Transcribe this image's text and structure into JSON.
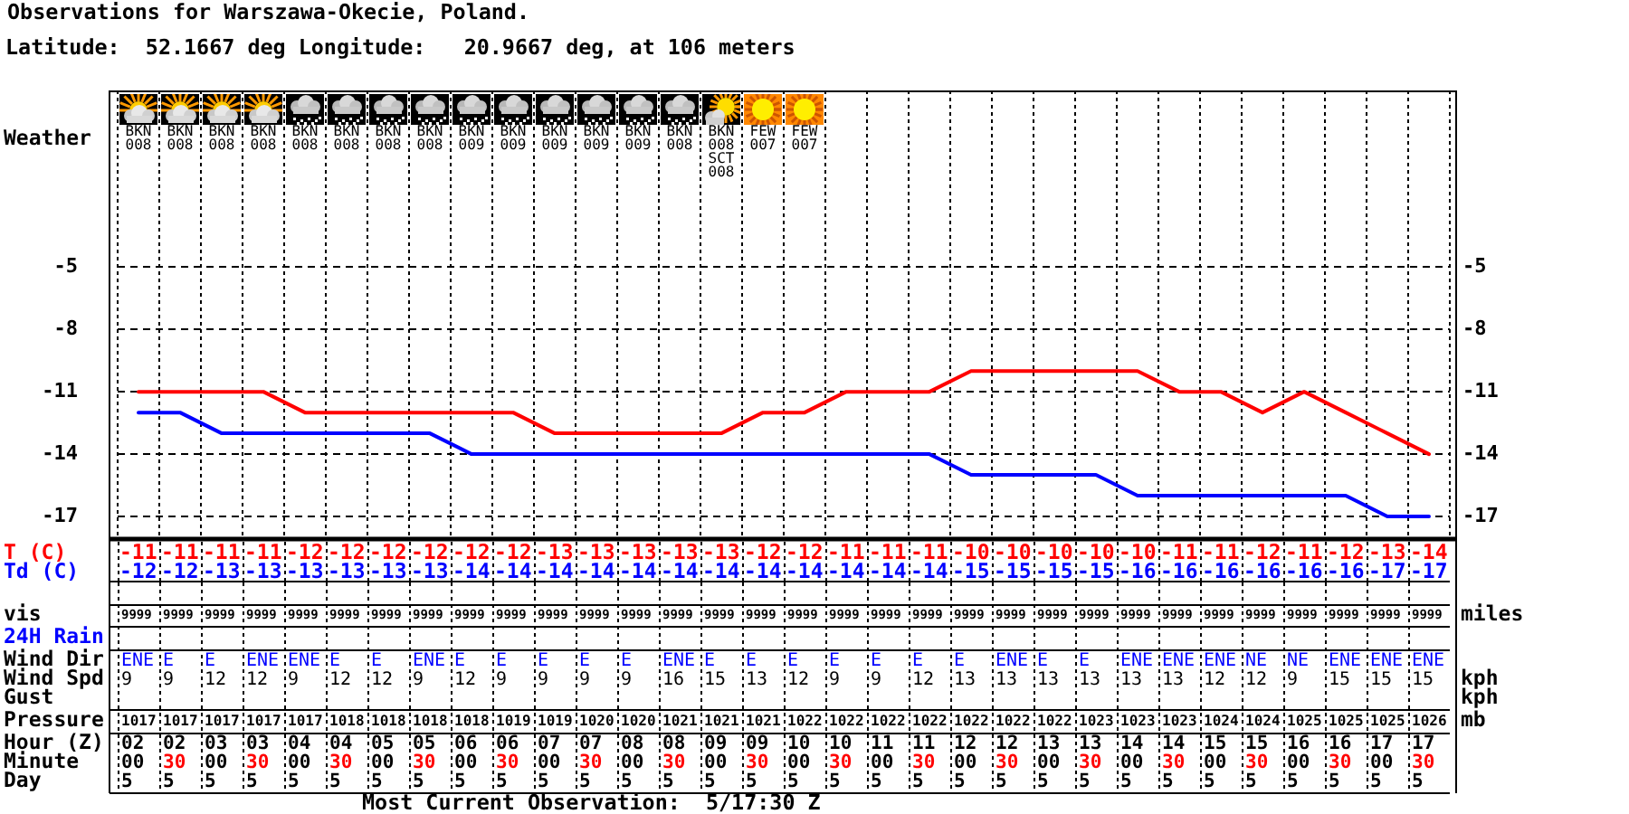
{
  "chart_data": [
    {
      "type": "line",
      "title": "Observations for Warszawa-Okecie, Poland.",
      "subtitle": "Latitude:  52.1667 deg Longitude:   20.9667 deg, at 106 meters",
      "categories": [
        null,
        null,
        null,
        null,
        null,
        null,
        null,
        null,
        null,
        null,
        null,
        null,
        null,
        null,
        null,
        null,
        null,
        null,
        null,
        null,
        null,
        null,
        null,
        null,
        null,
        null,
        null,
        null,
        null,
        null,
        null,
        null
      ],
      "series": [
        {
          "name": "T (C)",
          "color": "#ff0000",
          "values": [
            -11,
            -11,
            -11,
            -11,
            -12,
            -12,
            -12,
            -12,
            -12,
            -12,
            -13,
            -13,
            -13,
            -13,
            -13,
            -12,
            -12,
            -11,
            -11,
            -11,
            -10,
            -10,
            -10,
            -10,
            -10,
            -11,
            -11,
            -12,
            -11,
            -12,
            -13,
            -14
          ]
        },
        {
          "name": "Td (C)",
          "color": "#0000ff",
          "values": [
            -12,
            -12,
            -13,
            -13,
            -13,
            -13,
            -13,
            -13,
            -14,
            -14,
            -14,
            -14,
            -14,
            -14,
            -14,
            -14,
            -14,
            -14,
            -14,
            -14,
            -15,
            -15,
            -15,
            -15,
            -16,
            -16,
            -16,
            -16,
            -16,
            -16,
            -17,
            -17
          ]
        }
      ],
      "ylim": [
        -18,
        3.5
      ],
      "yticks": [
        -5,
        -8,
        -11,
        -14,
        -17
      ],
      "y2lim": [
        -18,
        3.5
      ],
      "y2ticks": [
        -5,
        -8,
        -11,
        -14,
        -17
      ],
      "grid": true,
      "data_labels": true,
      "tick_labels": "y"
    },
    {
      "type": "other",
      "categories": [
        null,
        null,
        null,
        null,
        null,
        null,
        null,
        null,
        null,
        null,
        null,
        null,
        null,
        null,
        null,
        null,
        null,
        null,
        null,
        null,
        null,
        null,
        null,
        null,
        null,
        null,
        null,
        null,
        null,
        null,
        null,
        null
      ],
      "ylabel": "Weather",
      "annotations": [
        "BKN 008",
        "BKN 008",
        "BKN 008",
        "BKN 008",
        "BKN 008",
        "BKN 008",
        "BKN 008",
        "BKN 008",
        "BKN 009",
        "BKN 009",
        "BKN 009",
        "BKN 009",
        "BKN 009",
        "BKN 008",
        "BKN 008 SCT 008",
        "FEW 007",
        "FEW 007"
      ]
    },
    {
      "type": "heatmap",
      "categories": [
        null,
        null,
        null,
        null,
        null,
        null,
        null,
        null,
        null,
        null,
        null,
        null,
        null,
        null,
        null,
        null,
        null,
        null,
        null,
        null,
        null,
        null,
        null,
        null,
        null,
        null,
        null,
        null,
        null,
        null,
        null,
        null
      ],
      "y_categories": [
        "vis",
        "24H Rain",
        "Wind Dir",
        "Wind Spd",
        "Gust",
        "Pressure",
        "Hour (Z)",
        "Minute",
        "Day"
      ],
      "y2_categories": [
        "miles",
        null,
        null,
        "kph",
        "kph",
        "mb",
        null,
        null,
        null
      ],
      "cells": [
        [
          9999,
          9999,
          9999,
          9999,
          9999,
          9999,
          9999,
          9999,
          9999,
          9999,
          9999,
          9999,
          9999,
          9999,
          9999,
          9999,
          9999,
          9999,
          9999,
          9999,
          9999,
          9999,
          9999,
          9999,
          9999,
          9999,
          9999,
          9999,
          9999,
          9999,
          9999,
          9999
        ],
        [
          null,
          null,
          null,
          null,
          null,
          null,
          null,
          null,
          null,
          null,
          null,
          null,
          null,
          null,
          null,
          null,
          null,
          null,
          null,
          null,
          null,
          null,
          null,
          null,
          null,
          null,
          null,
          null,
          null,
          null,
          null,
          null
        ],
        [
          null,
          null,
          null,
          null,
          null,
          null,
          null,
          null,
          null,
          null,
          null,
          null,
          null,
          null,
          null,
          null,
          null,
          null,
          null,
          null,
          null,
          null,
          null,
          null,
          null,
          null,
          null,
          null,
          null,
          null,
          null,
          null
        ],
        [
          9,
          9,
          12,
          12,
          9,
          12,
          12,
          9,
          12,
          9,
          9,
          9,
          9,
          16,
          15,
          13,
          12,
          9,
          9,
          12,
          13,
          13,
          13,
          13,
          13,
          13,
          12,
          12,
          9,
          15,
          15,
          15
        ],
        [
          null,
          null,
          null,
          null,
          null,
          null,
          null,
          null,
          null,
          null,
          null,
          null,
          null,
          null,
          null,
          null,
          null,
          null,
          null,
          null,
          null,
          null,
          null,
          null,
          null,
          null,
          null,
          null,
          null,
          null,
          null,
          null
        ],
        [
          1017,
          1017,
          1017,
          1017,
          1017,
          1018,
          1018,
          1018,
          1018,
          1019,
          1019,
          1020,
          1020,
          1021,
          1021,
          1021,
          1022,
          1022,
          1022,
          1022,
          1022,
          1022,
          1022,
          1023,
          1023,
          1023,
          1024,
          1024,
          1025,
          1025,
          1025,
          1026
        ],
        [
          2,
          2,
          3,
          3,
          4,
          4,
          5,
          5,
          6,
          6,
          7,
          7,
          8,
          8,
          9,
          9,
          10,
          10,
          11,
          11,
          12,
          12,
          13,
          13,
          14,
          14,
          15,
          15,
          16,
          16,
          17,
          17
        ],
        [
          0,
          30,
          0,
          30,
          0,
          30,
          0,
          30,
          0,
          30,
          0,
          30,
          0,
          30,
          0,
          30,
          0,
          30,
          0,
          30,
          0,
          30,
          0,
          30,
          0,
          30,
          0,
          30,
          0,
          30,
          0,
          30
        ],
        [
          5,
          5,
          5,
          5,
          5,
          5,
          5,
          5,
          5,
          5,
          5,
          5,
          5,
          5,
          5,
          5,
          5,
          5,
          5,
          5,
          5,
          5,
          5,
          5,
          5,
          5,
          5,
          5,
          5,
          5,
          5,
          5
        ]
      ],
      "cell_labels": [
        [
          "9999",
          "9999",
          "9999",
          "9999",
          "9999",
          "9999",
          "9999",
          "9999",
          "9999",
          "9999",
          "9999",
          "9999",
          "9999",
          "9999",
          "9999",
          "9999",
          "9999",
          "9999",
          "9999",
          "9999",
          "9999",
          "9999",
          "9999",
          "9999",
          "9999",
          "9999",
          "9999",
          "9999",
          "9999",
          "9999",
          "9999",
          "9999"
        ],
        [
          null,
          null,
          null,
          null,
          null,
          null,
          null,
          null,
          null,
          null,
          null,
          null,
          null,
          null,
          null,
          null,
          null,
          null,
          null,
          null,
          null,
          null,
          null,
          null,
          null,
          null,
          null,
          null,
          null,
          null,
          null,
          null
        ],
        [
          "ENE",
          "E",
          "E",
          "ENE",
          "ENE",
          "E",
          "E",
          "ENE",
          "E",
          "E",
          "E",
          "E",
          "E",
          "ENE",
          "E",
          "E",
          "E",
          "E",
          "E",
          "E",
          "E",
          "ENE",
          "E",
          "E",
          "ENE",
          "ENE",
          "ENE",
          "NE",
          "NE",
          "ENE",
          "ENE",
          "ENE"
        ],
        [
          "9",
          "9",
          "12",
          "12",
          "9",
          "12",
          "12",
          "9",
          "12",
          "9",
          "9",
          "9",
          "9",
          "16",
          "15",
          "13",
          "12",
          "9",
          "9",
          "12",
          "13",
          "13",
          "13",
          "13",
          "13",
          "13",
          "12",
          "12",
          "9",
          "15",
          "15",
          "15"
        ],
        [
          null,
          null,
          null,
          null,
          null,
          null,
          null,
          null,
          null,
          null,
          null,
          null,
          null,
          null,
          null,
          null,
          null,
          null,
          null,
          null,
          null,
          null,
          null,
          null,
          null,
          null,
          null,
          null,
          null,
          null,
          null,
          null
        ],
        [
          "1017",
          "1017",
          "1017",
          "1017",
          "1017",
          "1018",
          "1018",
          "1018",
          "1018",
          "1019",
          "1019",
          "1020",
          "1020",
          "1021",
          "1021",
          "1021",
          "1022",
          "1022",
          "1022",
          "1022",
          "1022",
          "1022",
          "1022",
          "1023",
          "1023",
          "1023",
          "1024",
          "1024",
          "1025",
          "1025",
          "1025",
          "1026"
        ],
        [
          "02",
          "02",
          "03",
          "03",
          "04",
          "04",
          "05",
          "05",
          "06",
          "06",
          "07",
          "07",
          "08",
          "08",
          "09",
          "09",
          "10",
          "10",
          "11",
          "11",
          "12",
          "12",
          "13",
          "13",
          "14",
          "14",
          "15",
          "15",
          "16",
          "16",
          "17",
          "17"
        ],
        [
          "00",
          "30",
          "00",
          "30",
          "00",
          "30",
          "00",
          "30",
          "00",
          "30",
          "00",
          "30",
          "00",
          "30",
          "00",
          "30",
          "00",
          "30",
          "00",
          "30",
          "00",
          "30",
          "00",
          "30",
          "00",
          "30",
          "00",
          "30",
          "00",
          "30",
          "00",
          "30"
        ],
        [
          "5",
          "5",
          "5",
          "5",
          "5",
          "5",
          "5",
          "5",
          "5",
          "5",
          "5",
          "5",
          "5",
          "5",
          "5",
          "5",
          "5",
          "5",
          "5",
          "5",
          "5",
          "5",
          "5",
          "5",
          "5",
          "5",
          "5",
          "5",
          "5",
          "5",
          "5",
          "5"
        ]
      ],
      "annotations": [
        "Most Current Observation:  5/17:30 Z"
      ]
    }
  ]
}
